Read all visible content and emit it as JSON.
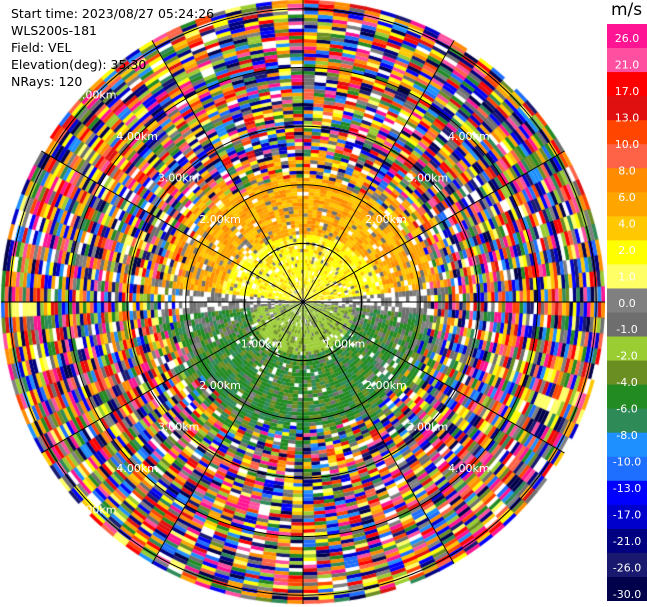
{
  "header": {
    "start_time": "Start time: 2023/08/27 05:24:26",
    "instrument": "WLS200s-181",
    "field": "Field: VEL",
    "elevation": "Elevation(deg): 35.30",
    "nrays": "NRays: 120"
  },
  "chart_data": {
    "type": "heatmap",
    "subtype": "ppi-polar",
    "range_rings_km": [
      1.0,
      2.0,
      3.0,
      4.0,
      5.0
    ],
    "range_ring_label_unit": "km",
    "max_range_km": 5.15,
    "n_rays": 120,
    "ray_direction_lines_deg": [
      0,
      30,
      60,
      90,
      120,
      150,
      180,
      210,
      240,
      270,
      300,
      330
    ],
    "ring_labels": [
      {
        "text": "1.00km",
        "ring": 1,
        "angle_deg": 225
      },
      {
        "text": "1.00km",
        "ring": 1,
        "angle_deg": 135
      },
      {
        "text": "2.00km",
        "ring": 2,
        "angle_deg": 315
      },
      {
        "text": "2.00km",
        "ring": 2,
        "angle_deg": 45
      },
      {
        "text": "2.00km",
        "ring": 2,
        "angle_deg": 225
      },
      {
        "text": "2.00km",
        "ring": 2,
        "angle_deg": 135
      },
      {
        "text": "3.00km",
        "ring": 3,
        "angle_deg": 315
      },
      {
        "text": "3.00km",
        "ring": 3,
        "angle_deg": 45
      },
      {
        "text": "3.00km",
        "ring": 3,
        "angle_deg": 225
      },
      {
        "text": "3.00km",
        "ring": 3,
        "angle_deg": 135
      },
      {
        "text": "4.00km",
        "ring": 4,
        "angle_deg": 315
      },
      {
        "text": "4.00km",
        "ring": 4,
        "angle_deg": 45
      },
      {
        "text": "4.00km",
        "ring": 4,
        "angle_deg": 225
      },
      {
        "text": "4.00km",
        "ring": 4,
        "angle_deg": 135
      },
      {
        "text": "5.00km",
        "ring": 5,
        "angle_deg": 315
      },
      {
        "text": "5.00km",
        "ring": 5,
        "angle_deg": 225
      }
    ],
    "colorbar": {
      "unit": "m/s",
      "tick_labels": [
        "26.0",
        "21.0",
        "17.0",
        "13.0",
        "10.0",
        "8.0",
        "6.0",
        "4.0",
        "2.0",
        "1.0",
        "0.0",
        "-1.0",
        "-2.0",
        "-4.0",
        "-6.0",
        "-8.0",
        "-10.0",
        "-13.0",
        "-17.0",
        "-21.0",
        "-26.0",
        "-30.0"
      ],
      "colors_top_to_bottom": [
        "#ff1493",
        "#ff4fa0",
        "#ff0000",
        "#e01010",
        "#ff4500",
        "#ff6347",
        "#ff8c00",
        "#ffa500",
        "#ffc800",
        "#ffff00",
        "#ffff66",
        "#808080",
        "#6e6e6e",
        "#9acd32",
        "#6b8e23",
        "#228b22",
        "#2e8b57",
        "#1e90ff",
        "#1e6eff",
        "#0000ff",
        "#0000cd",
        "#000080",
        "#191970",
        "#00004b"
      ]
    },
    "near_range_pattern": "positive velocities (yellow/orange) to the north, negative velocities (green) to the south, noisy multi-colour returns beyond ~2 km"
  }
}
